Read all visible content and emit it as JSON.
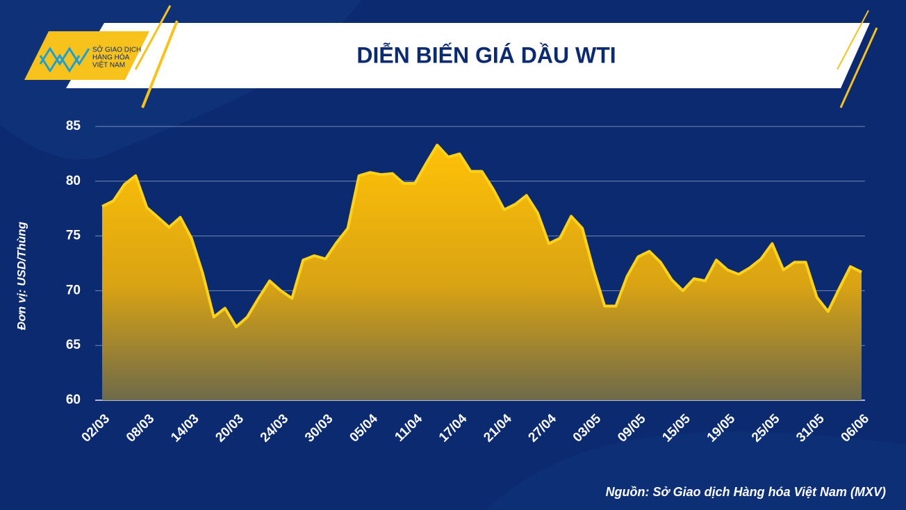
{
  "logo": [
    "SỞ GIAO DỊCH",
    "HÀNG HÓA",
    "VIỆT NAM"
  ],
  "chart_data": {
    "type": "area",
    "title": "DIỄN BIẾN GIÁ DẦU WTI",
    "y_label": "Đơn vị: USD/Thùng",
    "source": "Nguồn: Sở Giao dịch Hàng hóa Việt Nam (MXV)",
    "categories": [
      "02/03",
      null,
      null,
      null,
      "08/03",
      null,
      null,
      null,
      "14/03",
      null,
      null,
      null,
      "20/03",
      null,
      null,
      null,
      "24/03",
      null,
      null,
      null,
      "30/03",
      null,
      null,
      null,
      "05/04",
      null,
      null,
      null,
      "11/04",
      null,
      null,
      null,
      "17/04",
      null,
      null,
      null,
      "21/04",
      null,
      null,
      null,
      "27/04",
      null,
      null,
      null,
      "03/05",
      null,
      null,
      null,
      "09/05",
      null,
      null,
      null,
      "15/05",
      null,
      null,
      null,
      "19/05",
      null,
      null,
      null,
      "25/05",
      null,
      null,
      null,
      "31/05",
      null,
      null,
      null,
      "06/06"
    ],
    "values": [
      77.7,
      78.2,
      79.7,
      80.5,
      77.6,
      76.7,
      75.8,
      76.7,
      74.8,
      71.6,
      67.6,
      68.4,
      66.7,
      67.6,
      69.3,
      70.9,
      70.0,
      69.3,
      72.8,
      73.2,
      72.9,
      74.4,
      75.7,
      80.5,
      80.8,
      80.6,
      80.7,
      79.8,
      79.8,
      81.6,
      83.3,
      82.2,
      82.5,
      80.9,
      80.9,
      79.3,
      77.4,
      77.9,
      78.7,
      77.1,
      74.3,
      74.8,
      76.8,
      75.7,
      71.9,
      68.6,
      68.6,
      71.3,
      73.1,
      73.6,
      72.6,
      71.0,
      70.0,
      71.1,
      70.9,
      72.8,
      71.9,
      71.5,
      72.1,
      72.9,
      74.3,
      71.9,
      72.6,
      72.6,
      69.4,
      68.1,
      70.2,
      72.2,
      71.7
    ],
    "color": "#ffd21a",
    "ylim": [
      60,
      85
    ],
    "yticks": [
      60,
      65,
      70,
      75,
      80,
      85
    ],
    "grid": true
  }
}
